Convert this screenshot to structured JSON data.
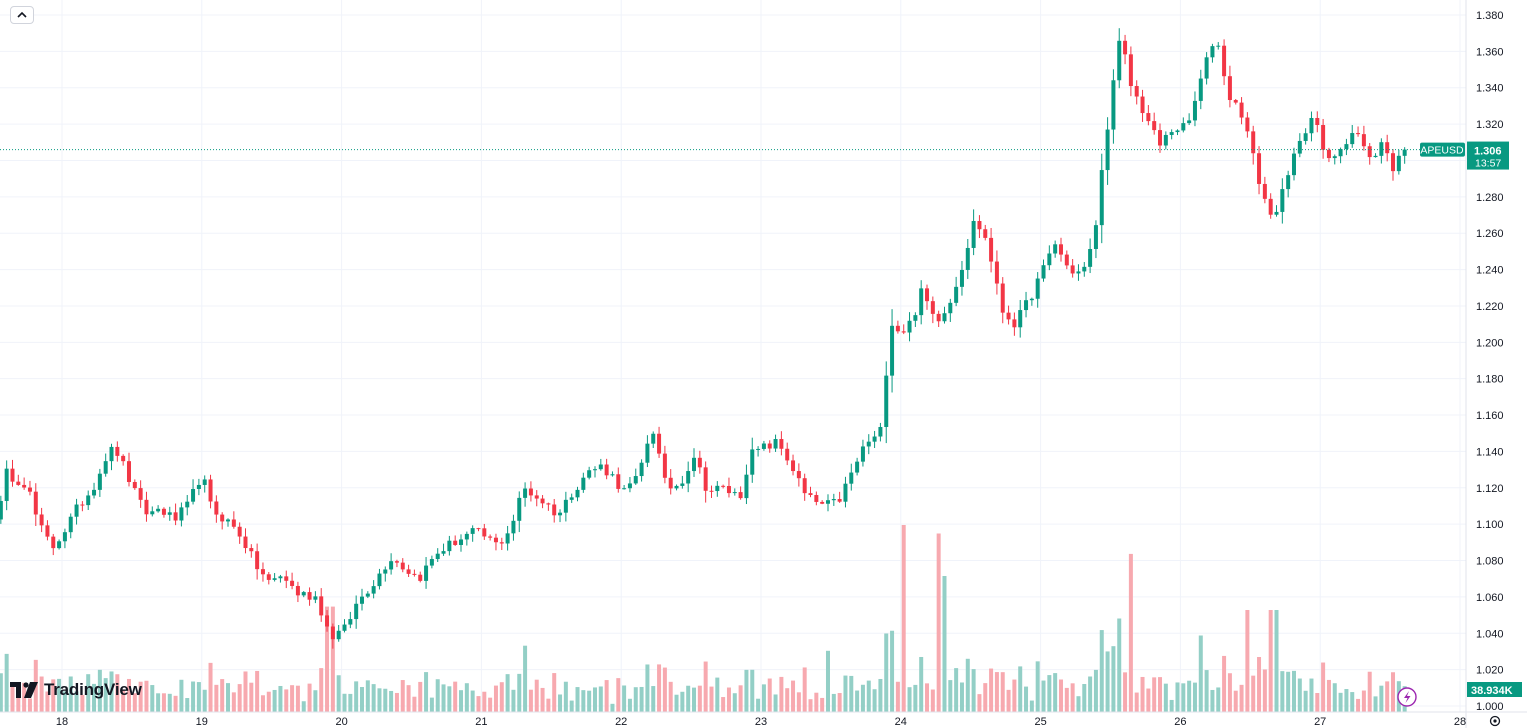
{
  "ui": {
    "logo_text": "TradingView",
    "symbol": "APEUSD",
    "last_price": "1.306",
    "countdown": "13:57",
    "volume_label": "38.934K",
    "colors": {
      "up": "#089981",
      "down": "#f23645",
      "up_vol": "#93cfc6",
      "down_vol": "#f7a9af",
      "grid": "#f0f3fa",
      "axis_text": "#131722"
    }
  },
  "chart_data": {
    "type": "candlestick",
    "symbol": "APEUSD",
    "x_ticks": [
      "18",
      "19",
      "20",
      "21",
      "22",
      "23",
      "24",
      "25",
      "26",
      "27",
      "28"
    ],
    "y_ticks": [
      "1.000",
      "1.020",
      "1.040",
      "1.060",
      "1.080",
      "1.100",
      "1.120",
      "1.140",
      "1.160",
      "1.180",
      "1.200",
      "1.220",
      "1.240",
      "1.260",
      "1.280",
      "1.300",
      "1.320",
      "1.340",
      "1.360",
      "1.380"
    ],
    "ylim": [
      1.0,
      1.386
    ],
    "grid": true,
    "last_price": 1.306,
    "anchors": [
      [
        17.55,
        1.105
      ],
      [
        17.6,
        1.128
      ],
      [
        17.75,
        1.122
      ],
      [
        17.83,
        1.1
      ],
      [
        17.93,
        1.087
      ],
      [
        18.03,
        1.098
      ],
      [
        18.12,
        1.11
      ],
      [
        18.22,
        1.12
      ],
      [
        18.32,
        1.138
      ],
      [
        18.38,
        1.142
      ],
      [
        18.45,
        1.13
      ],
      [
        18.55,
        1.112
      ],
      [
        18.62,
        1.105
      ],
      [
        18.7,
        1.109
      ],
      [
        18.8,
        1.102
      ],
      [
        18.9,
        1.11
      ],
      [
        19.0,
        1.128
      ],
      [
        19.07,
        1.108
      ],
      [
        19.18,
        1.102
      ],
      [
        19.28,
        1.094
      ],
      [
        19.38,
        1.078
      ],
      [
        19.48,
        1.068
      ],
      [
        19.58,
        1.072
      ],
      [
        19.68,
        1.062
      ],
      [
        19.82,
        1.06
      ],
      [
        19.92,
        1.038
      ],
      [
        20.02,
        1.042
      ],
      [
        20.12,
        1.058
      ],
      [
        20.25,
        1.07
      ],
      [
        20.35,
        1.082
      ],
      [
        20.45,
        1.076
      ],
      [
        20.55,
        1.07
      ],
      [
        20.68,
        1.084
      ],
      [
        20.8,
        1.09
      ],
      [
        20.95,
        1.096
      ],
      [
        21.05,
        1.092
      ],
      [
        21.12,
        1.088
      ],
      [
        21.22,
        1.1
      ],
      [
        21.3,
        1.12
      ],
      [
        21.45,
        1.112
      ],
      [
        21.55,
        1.105
      ],
      [
        21.65,
        1.118
      ],
      [
        21.75,
        1.128
      ],
      [
        21.85,
        1.132
      ],
      [
        21.92,
        1.128
      ],
      [
        22.02,
        1.118
      ],
      [
        22.12,
        1.125
      ],
      [
        22.22,
        1.155
      ],
      [
        22.32,
        1.12
      ],
      [
        22.42,
        1.122
      ],
      [
        22.52,
        1.138
      ],
      [
        22.62,
        1.118
      ],
      [
        22.72,
        1.12
      ],
      [
        22.85,
        1.115
      ],
      [
        22.92,
        1.138
      ],
      [
        23.02,
        1.142
      ],
      [
        23.12,
        1.145
      ],
      [
        23.22,
        1.132
      ],
      [
        23.32,
        1.115
      ],
      [
        23.45,
        1.11
      ],
      [
        23.55,
        1.112
      ],
      [
        23.65,
        1.128
      ],
      [
        23.75,
        1.145
      ],
      [
        23.85,
        1.148
      ],
      [
        23.93,
        1.212
      ],
      [
        24.0,
        1.205
      ],
      [
        24.08,
        1.212
      ],
      [
        24.15,
        1.228
      ],
      [
        24.25,
        1.212
      ],
      [
        24.35,
        1.222
      ],
      [
        24.45,
        1.245
      ],
      [
        24.53,
        1.268
      ],
      [
        24.62,
        1.255
      ],
      [
        24.72,
        1.218
      ],
      [
        24.82,
        1.21
      ],
      [
        24.92,
        1.224
      ],
      [
        25.02,
        1.24
      ],
      [
        25.1,
        1.255
      ],
      [
        25.2,
        1.24
      ],
      [
        25.3,
        1.238
      ],
      [
        25.38,
        1.255
      ],
      [
        25.47,
        1.315
      ],
      [
        25.57,
        1.368
      ],
      [
        25.65,
        1.34
      ],
      [
        25.75,
        1.325
      ],
      [
        25.85,
        1.308
      ],
      [
        25.95,
        1.318
      ],
      [
        26.05,
        1.318
      ],
      [
        26.15,
        1.345
      ],
      [
        26.25,
        1.37
      ],
      [
        26.35,
        1.335
      ],
      [
        26.45,
        1.325
      ],
      [
        26.55,
        1.292
      ],
      [
        26.65,
        1.268
      ],
      [
        26.75,
        1.285
      ],
      [
        26.85,
        1.312
      ],
      [
        26.95,
        1.325
      ],
      [
        27.05,
        1.298
      ],
      [
        27.15,
        1.308
      ],
      [
        27.25,
        1.318
      ],
      [
        27.35,
        1.3
      ],
      [
        27.45,
        1.31
      ],
      [
        27.52,
        1.296
      ],
      [
        27.58,
        1.306
      ]
    ],
    "volume_spikes": [
      [
        18.68,
        1.1
      ],
      [
        19.9,
        6.2
      ],
      [
        21.3,
        3.9
      ],
      [
        24.0,
        11.0
      ],
      [
        24.25,
        10.5
      ],
      [
        24.3,
        8.0
      ],
      [
        25.55,
        5.5
      ],
      [
        25.62,
        9.3
      ],
      [
        26.12,
        4.5
      ],
      [
        26.45,
        6.0
      ],
      [
        26.65,
        6.0
      ],
      [
        23.45,
        3.6
      ],
      [
        22.25,
        2.8
      ]
    ]
  }
}
